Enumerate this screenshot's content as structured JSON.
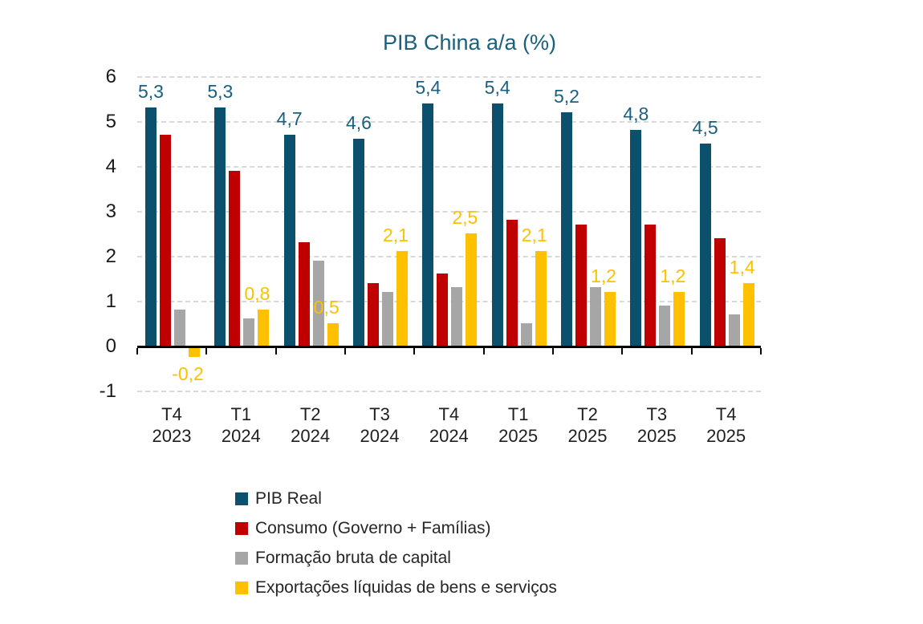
{
  "title": "PIB China a/a (%)",
  "colors": {
    "pib_real": "#0B516E",
    "consumo": "#C00000",
    "capital": "#A6A6A6",
    "exportacoes": "#FFC000",
    "gridline": "#D9D9D9",
    "axis": "#000000",
    "title_text": "#1A6080",
    "pib_label_text": "#1A6080",
    "exportacoes_label_text": "#FFC000",
    "axis_text": "#1a1a1a"
  },
  "chart_data": {
    "type": "bar",
    "title": "PIB China a/a (%)",
    "categories": [
      "T4 2023",
      "T1 2024",
      "T2 2024",
      "T3 2024",
      "T4 2024",
      "T1 2025",
      "T2 2025",
      "T3 2025",
      "T4 2025"
    ],
    "series": [
      {
        "name": "PIB Real",
        "color_key": "pib_real",
        "values": [
          5.3,
          5.3,
          4.7,
          4.6,
          5.4,
          5.4,
          5.2,
          4.8,
          4.5
        ],
        "labels": [
          "5,3",
          "5,3",
          "4,7",
          "4,6",
          "5,4",
          "5,4",
          "5,2",
          "4,8",
          "4,5"
        ],
        "show_labels": true,
        "label_color_key": "pib_label_text"
      },
      {
        "name": "Consumo (Governo + Famílias)",
        "color_key": "consumo",
        "values": [
          4.7,
          3.9,
          2.3,
          1.4,
          1.6,
          2.8,
          2.7,
          2.7,
          2.4
        ],
        "labels": [],
        "show_labels": false
      },
      {
        "name": "Formação bruta de capital",
        "color_key": "capital",
        "values": [
          0.8,
          0.6,
          1.9,
          1.2,
          1.3,
          0.5,
          1.3,
          0.9,
          0.7
        ],
        "labels": [],
        "show_labels": false
      },
      {
        "name": "Exportações líquidas de bens e serviços",
        "color_key": "exportacoes",
        "values": [
          -0.2,
          0.8,
          0.5,
          2.1,
          2.5,
          2.1,
          1.2,
          1.2,
          1.4
        ],
        "labels": [
          "-0,2",
          "0,8",
          "0,5",
          "2,1",
          "2,5",
          "2,1",
          "1,2",
          "1,2",
          "1,4"
        ],
        "show_labels": true,
        "label_color_key": "exportacoes_label_text"
      }
    ],
    "ylim": [
      -1,
      6
    ],
    "yticks": [
      6,
      5,
      4,
      3,
      2,
      1,
      0,
      -1
    ],
    "ytick_labels": [
      "6",
      "5",
      "4",
      "3",
      "2",
      "1",
      "0",
      "-1"
    ],
    "grid": "horizontal-dashed",
    "legend_position": "bottom-left"
  }
}
